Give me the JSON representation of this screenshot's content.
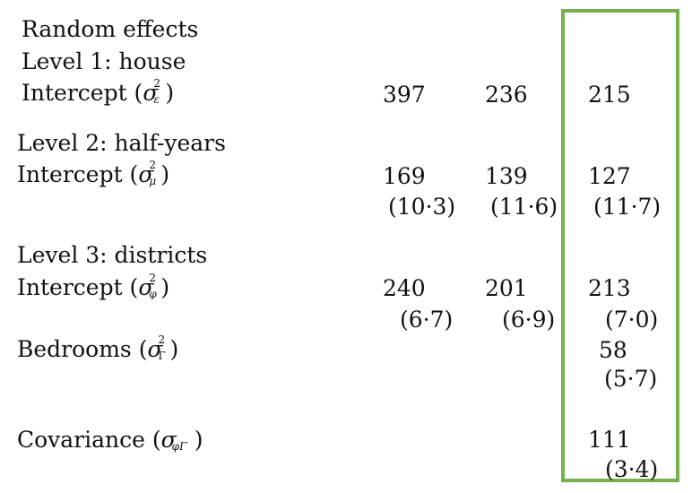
{
  "colors": {
    "highlight_border": "#77b04f"
  },
  "headers": {
    "title": "Random effects",
    "level1": "Level 1: house",
    "level2": "Level 2: half-years",
    "level3": "Level 3: districts"
  },
  "rows": {
    "l1_intercept": {
      "label": "Intercept (",
      "sym": "σ",
      "sup": "2",
      "sub": "ε",
      "close": ")",
      "v1": "397",
      "v2": "236",
      "v3": "215"
    },
    "l2_intercept": {
      "label": "Intercept (",
      "sym": "σ",
      "sup": "2",
      "sub": "μ",
      "close": ")",
      "v1": "169",
      "v2": "139",
      "v3": "127",
      "se1": "(10·3)",
      "se2": "(11·6)",
      "se3": "(11·7)"
    },
    "l3_intercept": {
      "label": "Intercept (",
      "sym": "σ",
      "sup": "2",
      "sub": "φ",
      "close": ")",
      "v1": "240",
      "v2": "201",
      "v3": "213",
      "se1": "(6·7)",
      "se2": "(6·9)",
      "se3": "(7·0)"
    },
    "bedrooms": {
      "label": "Bedrooms (",
      "sym": "σ",
      "sup": "2",
      "sub": "Γ",
      "close": ")",
      "v3": "58",
      "se3": "(5·7)"
    },
    "covariance": {
      "label": "Covariance (",
      "sym": "σ",
      "sub": "φΓ",
      "close": ")",
      "v3": "111",
      "se3": "(3·4)"
    }
  }
}
